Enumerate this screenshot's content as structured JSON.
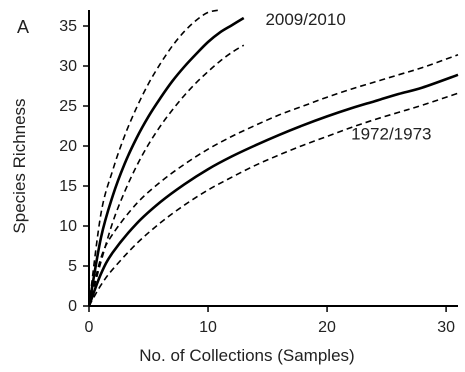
{
  "chart_data": {
    "type": "line",
    "panel_label": "A",
    "xlabel": "No. of Collections (Samples)",
    "ylabel": "Species Richness",
    "xlim": [
      0,
      31
    ],
    "ylim": [
      0,
      37
    ],
    "x_ticks": [
      "0",
      "10",
      "20",
      "30"
    ],
    "y_ticks": [
      "0",
      "5",
      "10",
      "15",
      "20",
      "25",
      "30",
      "35"
    ],
    "grid": false,
    "series": [
      {
        "name": "2009/2010",
        "style": "solid",
        "x": [
          0,
          1,
          2,
          3,
          4,
          5,
          6,
          7,
          8,
          9,
          10,
          11,
          12,
          13
        ],
        "y": [
          0,
          8.5,
          13.8,
          17.8,
          21.0,
          23.7,
          26.0,
          28.1,
          29.9,
          31.5,
          33.0,
          34.2,
          35.1,
          36.0
        ]
      },
      {
        "name": "2009/2010 upper",
        "style": "dashed",
        "x": [
          0,
          1,
          2,
          3,
          4,
          5,
          6,
          7,
          8,
          9,
          10,
          11
        ],
        "y": [
          0,
          11.5,
          17.0,
          21.3,
          24.8,
          27.8,
          30.3,
          32.5,
          34.3,
          35.7,
          36.7,
          37.0
        ]
      },
      {
        "name": "2009/2010 lower",
        "style": "dashed",
        "x": [
          0,
          1,
          2,
          3,
          4,
          5,
          6,
          7,
          8,
          9,
          10,
          11,
          12,
          13
        ],
        "y": [
          0,
          5.5,
          10.5,
          14.3,
          17.5,
          20.2,
          22.5,
          24.5,
          26.3,
          27.9,
          29.3,
          30.6,
          31.7,
          32.6
        ]
      },
      {
        "name": "1972/1973",
        "style": "solid",
        "x": [
          0,
          1,
          2,
          4,
          6,
          8,
          10,
          12,
          14,
          16,
          18,
          20,
          22,
          24,
          26,
          28,
          31
        ],
        "y": [
          0,
          4.0,
          6.7,
          10.3,
          13.0,
          15.2,
          17.1,
          18.7,
          20.1,
          21.4,
          22.6,
          23.7,
          24.7,
          25.6,
          26.5,
          27.3,
          28.9
        ]
      },
      {
        "name": "1972/1973 upper",
        "style": "dashed",
        "x": [
          0,
          1,
          2,
          4,
          6,
          8,
          10,
          12,
          14,
          16,
          18,
          20,
          22,
          24,
          26,
          28,
          31
        ],
        "y": [
          0,
          6.0,
          9.0,
          12.8,
          15.5,
          17.7,
          19.6,
          21.2,
          22.6,
          23.9,
          25.0,
          26.1,
          27.1,
          28.0,
          28.9,
          29.8,
          31.4
        ]
      },
      {
        "name": "1972/1973 lower",
        "style": "dashed",
        "x": [
          0,
          1,
          2,
          4,
          6,
          8,
          10,
          12,
          14,
          16,
          18,
          20,
          22,
          24,
          26,
          28,
          31
        ],
        "y": [
          0,
          2.6,
          4.6,
          7.8,
          10.4,
          12.6,
          14.5,
          16.1,
          17.6,
          18.9,
          20.1,
          21.2,
          22.3,
          23.3,
          24.2,
          25.1,
          26.6
        ]
      }
    ],
    "annotations": [
      {
        "text": "2009/2010",
        "x": 18.2,
        "y": 35.1
      },
      {
        "text": "1972/1973",
        "x": 25.4,
        "y": 20.8
      }
    ]
  }
}
